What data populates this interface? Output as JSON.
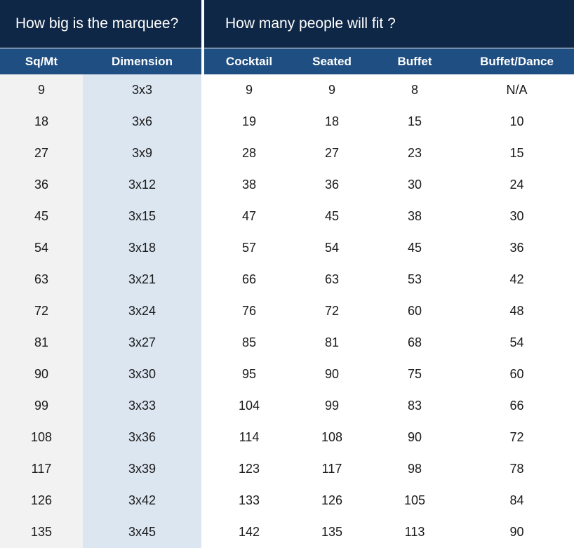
{
  "titles": {
    "size": "How big is the marquee?",
    "capacity": "How many people will fit ?"
  },
  "columns": {
    "sqmt": "Sq/Mt",
    "dimension": "Dimension",
    "cocktail": "Cocktail",
    "seated": "Seated",
    "buffet": "Buffet",
    "buffet_dance": "Buffet/Dance"
  },
  "colors": {
    "title_bg": "#0f2746",
    "header_bg": "#1f4e82",
    "sqmt_bg": "#f2f2f2",
    "dimension_bg": "#dce6f1"
  },
  "rows": [
    {
      "sqmt": "9",
      "dimension": "3x3",
      "cocktail": "9",
      "seated": "9",
      "buffet": "8",
      "buffet_dance": "N/A"
    },
    {
      "sqmt": "18",
      "dimension": "3x6",
      "cocktail": "19",
      "seated": "18",
      "buffet": "15",
      "buffet_dance": "10"
    },
    {
      "sqmt": "27",
      "dimension": "3x9",
      "cocktail": "28",
      "seated": "27",
      "buffet": "23",
      "buffet_dance": "15"
    },
    {
      "sqmt": "36",
      "dimension": "3x12",
      "cocktail": "38",
      "seated": "36",
      "buffet": "30",
      "buffet_dance": "24"
    },
    {
      "sqmt": "45",
      "dimension": "3x15",
      "cocktail": "47",
      "seated": "45",
      "buffet": "38",
      "buffet_dance": "30"
    },
    {
      "sqmt": "54",
      "dimension": "3x18",
      "cocktail": "57",
      "seated": "54",
      "buffet": "45",
      "buffet_dance": "36"
    },
    {
      "sqmt": "63",
      "dimension": "3x21",
      "cocktail": "66",
      "seated": "63",
      "buffet": "53",
      "buffet_dance": "42"
    },
    {
      "sqmt": "72",
      "dimension": "3x24",
      "cocktail": "76",
      "seated": "72",
      "buffet": "60",
      "buffet_dance": "48"
    },
    {
      "sqmt": "81",
      "dimension": "3x27",
      "cocktail": "85",
      "seated": "81",
      "buffet": "68",
      "buffet_dance": "54"
    },
    {
      "sqmt": "90",
      "dimension": "3x30",
      "cocktail": "95",
      "seated": "90",
      "buffet": "75",
      "buffet_dance": "60"
    },
    {
      "sqmt": "99",
      "dimension": "3x33",
      "cocktail": "104",
      "seated": "99",
      "buffet": "83",
      "buffet_dance": "66"
    },
    {
      "sqmt": "108",
      "dimension": "3x36",
      "cocktail": "114",
      "seated": "108",
      "buffet": "90",
      "buffet_dance": "72"
    },
    {
      "sqmt": "117",
      "dimension": "3x39",
      "cocktail": "123",
      "seated": "117",
      "buffet": "98",
      "buffet_dance": "78"
    },
    {
      "sqmt": "126",
      "dimension": "3x42",
      "cocktail": "133",
      "seated": "126",
      "buffet": "105",
      "buffet_dance": "84"
    },
    {
      "sqmt": "135",
      "dimension": "3x45",
      "cocktail": "142",
      "seated": "135",
      "buffet": "113",
      "buffet_dance": "90"
    }
  ]
}
